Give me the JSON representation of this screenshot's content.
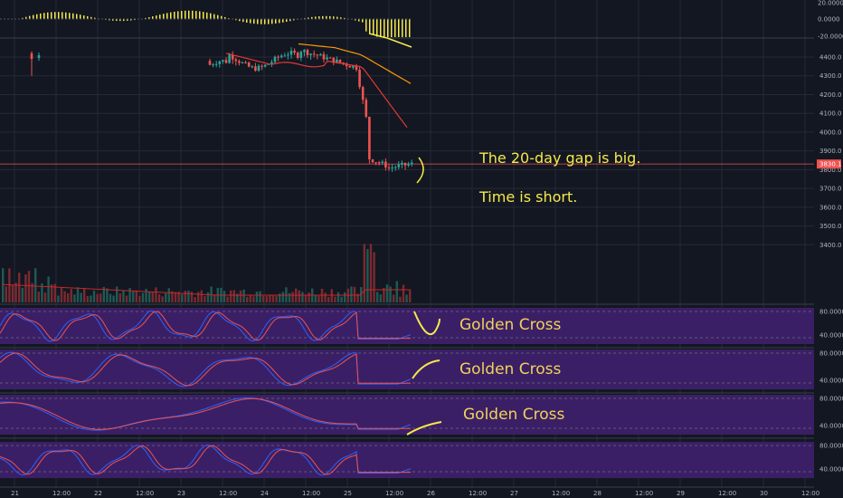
{
  "chart_data": {
    "type": "candlestick",
    "annotations": {
      "note1": "The 20-day gap is big.",
      "note2": "Time is short.",
      "cross1": "Golden Cross",
      "cross2": "Golden Cross",
      "cross3": "Golden Cross"
    },
    "macd_ticks": [
      "20.0000",
      "0.0000",
      "-20.0000"
    ],
    "price_ticks": [
      4400,
      4300,
      4200,
      4100,
      4000,
      3900,
      3800,
      3700,
      3600,
      3500,
      3400
    ],
    "price_tick_labels": [
      "4400.0",
      "4300.0",
      "4200.0",
      "4100.0",
      "4000.0",
      "3900.0",
      "3800.0",
      "3700.0",
      "3600.0",
      "3500.0",
      "3400.0"
    ],
    "last_price": "3830.1",
    "osc_ticks": [
      "80.0000",
      "40.0000"
    ],
    "x_ticks": [
      "21",
      "12:00",
      "22",
      "12:00",
      "23",
      "12:00",
      "24",
      "12:00",
      "25",
      "12:00",
      "26",
      "12:00",
      "27",
      "12:00",
      "28",
      "12:00",
      "29",
      "12:00",
      "30",
      "12:00"
    ],
    "colors": {
      "background": "#131722",
      "up": "#26a69a",
      "down": "#ef5350",
      "ma_fast": "#e53935",
      "ma_slow": "#ff9800",
      "osc_fill": "#3b1f66",
      "annotation": "#f5e94a",
      "k_line": "#2962ff",
      "d_line": "#ef5350"
    }
  }
}
